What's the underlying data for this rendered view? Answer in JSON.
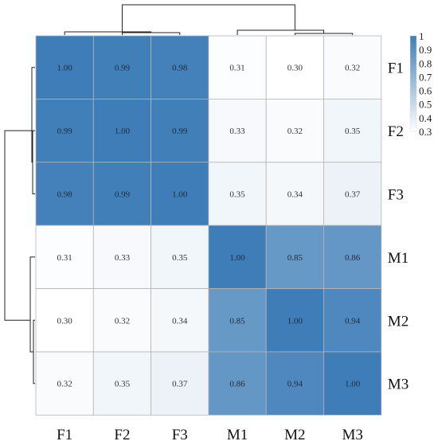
{
  "chart_data": {
    "type": "heatmap",
    "rows": [
      "F1",
      "F2",
      "F3",
      "M1",
      "M2",
      "M3"
    ],
    "cols": [
      "F1",
      "F2",
      "F3",
      "M1",
      "M2",
      "M3"
    ],
    "values": [
      [
        1.0,
        0.99,
        0.98,
        0.31,
        0.3,
        0.32
      ],
      [
        0.99,
        1.0,
        0.99,
        0.33,
        0.32,
        0.35
      ],
      [
        0.98,
        0.99,
        1.0,
        0.35,
        0.34,
        0.37
      ],
      [
        0.31,
        0.33,
        0.35,
        1.0,
        0.85,
        0.86
      ],
      [
        0.3,
        0.32,
        0.34,
        0.85,
        1.0,
        0.94
      ],
      [
        0.32,
        0.35,
        0.37,
        0.86,
        0.94,
        1.0
      ]
    ],
    "value_format": "2 decimals",
    "colorbar": {
      "min": 0.3,
      "max": 1.0,
      "ticks": [
        "1",
        "0.9",
        "0.8",
        "0.7",
        "0.6",
        "0.5",
        "0.4",
        "0.3"
      ],
      "color_low": "#ffffff",
      "color_high": "#3e7db8"
    },
    "dendrogram": {
      "top": true,
      "left": true,
      "clusters": [
        [
          "F1",
          "F2",
          "F3"
        ],
        [
          "M1",
          "M2",
          "M3"
        ]
      ]
    },
    "grid": true,
    "legend_position": "right"
  }
}
